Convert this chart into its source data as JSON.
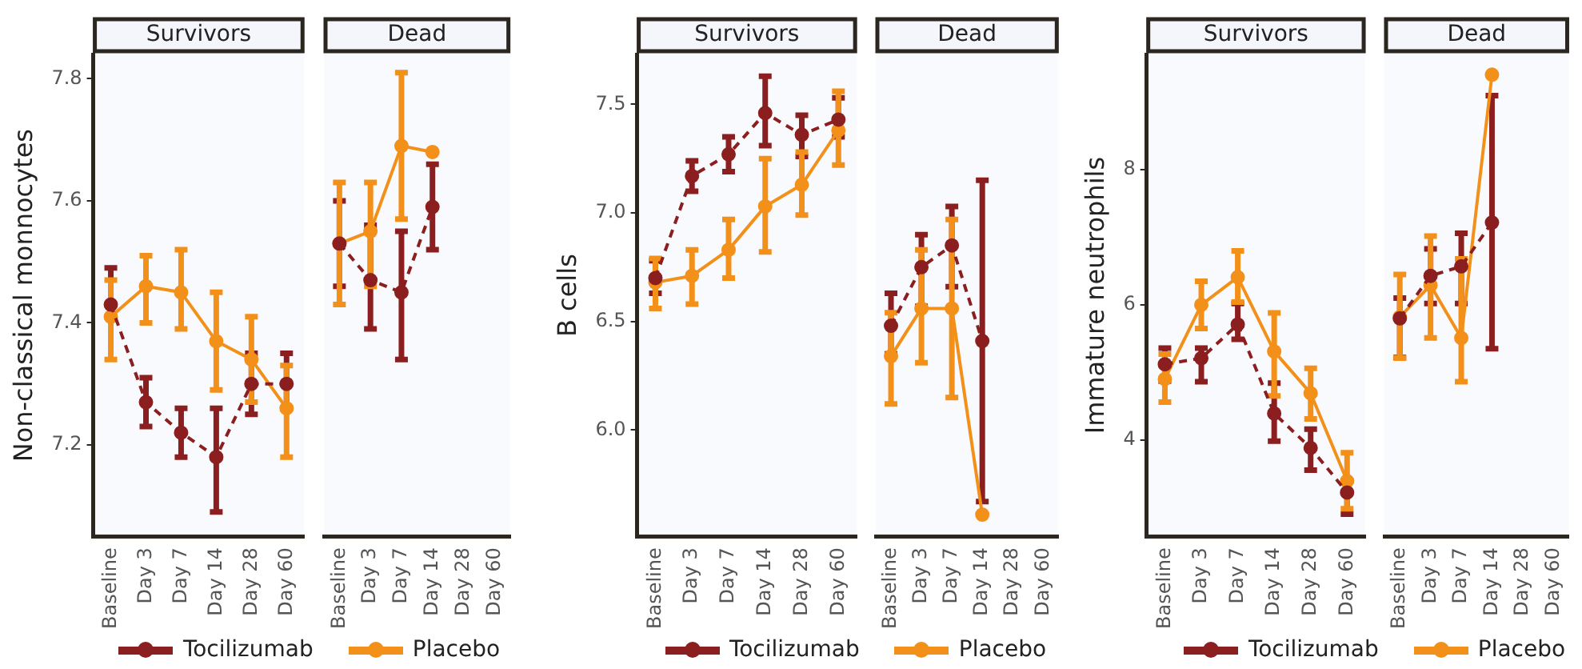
{
  "chart_data": [
    {
      "type": "line",
      "title": "Survivors",
      "ylabel": "Non-classical monnocytes",
      "categories": [
        "Baseline",
        "Day 3",
        "Day 7",
        "Day 14",
        "Day 28",
        "Day 60"
      ],
      "ylim": [
        7.05,
        7.84
      ],
      "yticks": [
        7.2,
        7.4,
        7.6,
        7.8
      ],
      "grid": false,
      "legend": "bottom",
      "marker": "circle",
      "series": [
        {
          "name": "Tocilizumab",
          "color": "#8b1e1e",
          "line_style": "dashed",
          "values": [
            7.43,
            7.27,
            7.22,
            7.18,
            7.3,
            7.3
          ],
          "errors": [
            [
              7.41,
              7.49
            ],
            [
              7.23,
              7.31
            ],
            [
              7.18,
              7.26
            ],
            [
              7.09,
              7.26
            ],
            [
              7.25,
              7.35
            ],
            [
              7.26,
              7.35
            ]
          ]
        },
        {
          "name": "Placebo",
          "color": "#f39019",
          "line_style": "solid",
          "values": [
            7.41,
            7.46,
            7.45,
            7.37,
            7.34,
            7.26
          ],
          "errors": [
            [
              7.34,
              7.47
            ],
            [
              7.4,
              7.51
            ],
            [
              7.39,
              7.52
            ],
            [
              7.29,
              7.45
            ],
            [
              7.27,
              7.41
            ],
            [
              7.18,
              7.33
            ]
          ]
        }
      ]
    },
    {
      "type": "line",
      "title": "Dead",
      "categories": [
        "Baseline",
        "Day 3",
        "Day 7",
        "Day 14",
        "Day 28",
        "Day 60"
      ],
      "ylim": [
        7.05,
        7.84
      ],
      "tick_labels": "x",
      "marker": "circle",
      "series": [
        {
          "color": "#8b1e1e",
          "line_style": "dashed",
          "values": [
            7.53,
            7.47,
            7.45,
            7.59,
            null,
            null
          ],
          "errors": [
            [
              7.46,
              7.6
            ],
            [
              7.39,
              7.56
            ],
            [
              7.34,
              7.55
            ],
            [
              7.52,
              7.66
            ],
            null,
            null
          ]
        },
        {
          "color": "#f39019",
          "line_style": "solid",
          "values": [
            7.53,
            7.55,
            7.69,
            7.68,
            null,
            null
          ],
          "errors": [
            [
              7.43,
              7.63
            ],
            [
              7.46,
              7.63
            ],
            [
              7.57,
              7.81
            ],
            null,
            null,
            null
          ]
        }
      ]
    },
    {
      "type": "line",
      "title": "Survivors",
      "ylabel": "B cells",
      "categories": [
        "Baseline",
        "Day 3",
        "Day 7",
        "Day 14",
        "Day 28",
        "Day 60"
      ],
      "ylim": [
        5.51,
        7.73
      ],
      "yticks": [
        {
          "value": 6,
          "label": "6.0"
        },
        6.5,
        {
          "value": 7,
          "label": "7.0"
        },
        7.5
      ],
      "grid": false,
      "legend": "bottom",
      "marker": "circle",
      "series": [
        {
          "name": "Tocilizumab",
          "color": "#8b1e1e",
          "line_style": "dashed",
          "values": [
            6.7,
            7.17,
            7.27,
            7.46,
            7.36,
            7.43
          ],
          "errors": [
            [
              6.63,
              6.78
            ],
            [
              7.1,
              7.24
            ],
            [
              7.19,
              7.35
            ],
            [
              7.31,
              7.63
            ],
            [
              7.26,
              7.45
            ],
            [
              7.35,
              7.53
            ]
          ]
        },
        {
          "name": "Placebo",
          "color": "#f39019",
          "line_style": "solid",
          "values": [
            6.68,
            6.71,
            6.83,
            7.03,
            7.13,
            7.38
          ],
          "errors": [
            [
              6.56,
              6.79
            ],
            [
              6.58,
              6.83
            ],
            [
              6.7,
              6.97
            ],
            [
              6.82,
              7.25
            ],
            [
              6.99,
              7.28
            ],
            [
              7.22,
              7.56
            ]
          ]
        }
      ]
    },
    {
      "type": "line",
      "title": "Dead",
      "categories": [
        "Baseline",
        "Day 3",
        "Day 7",
        "Day 14",
        "Day 28",
        "Day 60"
      ],
      "ylim": [
        5.51,
        7.73
      ],
      "tick_labels": "x",
      "marker": "circle",
      "series": [
        {
          "color": "#8b1e1e",
          "line_style": "dashed",
          "values": [
            6.48,
            6.75,
            6.85,
            6.41,
            null,
            null
          ],
          "errors": [
            [
              6.35,
              6.63
            ],
            [
              6.57,
              6.9
            ],
            [
              6.66,
              7.03
            ],
            [
              5.67,
              7.15
            ],
            null,
            null
          ]
        },
        {
          "color": "#f39019",
          "line_style": "solid",
          "values": [
            6.34,
            6.56,
            6.56,
            5.61,
            null,
            null
          ],
          "errors": [
            [
              6.12,
              6.54
            ],
            [
              6.31,
              6.83
            ],
            [
              6.15,
              6.97
            ],
            null,
            null,
            null
          ]
        }
      ]
    },
    {
      "type": "line",
      "title": "Survivors",
      "ylabel": "Immature neutrophils",
      "categories": [
        "Baseline",
        "Day 3",
        "Day 7",
        "Day 14",
        "Day 28",
        "Day 60"
      ],
      "ylim": [
        2.57,
        9.71
      ],
      "yticks": [
        4,
        6,
        8
      ],
      "grid": false,
      "legend": "bottom",
      "marker": "circle",
      "series": [
        {
          "name": "Tocilizumab",
          "color": "#8b1e1e",
          "line_style": "dashed",
          "values": [
            5.12,
            5.21,
            5.71,
            4.39,
            3.88,
            3.22
          ],
          "errors": [
            [
              4.87,
              5.36
            ],
            [
              4.86,
              5.36
            ],
            [
              5.49,
              6.02
            ],
            [
              3.98,
              4.84
            ],
            [
              3.55,
              4.16
            ],
            [
              2.9,
              3.39
            ]
          ]
        },
        {
          "name": "Placebo",
          "color": "#f39019",
          "line_style": "solid",
          "values": [
            4.9,
            6,
            6.41,
            5.31,
            4.69,
            3.39
          ],
          "errors": [
            [
              4.56,
              5.27
            ],
            [
              5.65,
              6.35
            ],
            [
              6.04,
              6.8
            ],
            [
              4.65,
              5.88
            ],
            [
              4.31,
              5.06
            ],
            [
              2.98,
              3.81
            ]
          ]
        }
      ]
    },
    {
      "type": "line",
      "title": "Dead",
      "categories": [
        "Baseline",
        "Day 3",
        "Day 7",
        "Day 14",
        "Day 28",
        "Day 60"
      ],
      "ylim": [
        2.57,
        9.71
      ],
      "tick_labels": "x",
      "marker": "circle",
      "series": [
        {
          "color": "#8b1e1e",
          "line_style": "dashed",
          "values": [
            5.8,
            6.43,
            6.57,
            7.22,
            null,
            null
          ],
          "errors": [
            [
              5.22,
              6.1
            ],
            [
              6.02,
              6.83
            ],
            [
              6.02,
              7.06
            ],
            [
              5.35,
              9.1
            ],
            null,
            null
          ]
        },
        {
          "color": "#f39019",
          "line_style": "solid",
          "values": [
            5.82,
            6.29,
            5.51,
            9.41,
            null,
            null
          ],
          "errors": [
            [
              5.21,
              6.45
            ],
            [
              5.51,
              7.02
            ],
            [
              4.86,
              6.68
            ],
            null,
            null,
            null
          ]
        }
      ]
    }
  ]
}
